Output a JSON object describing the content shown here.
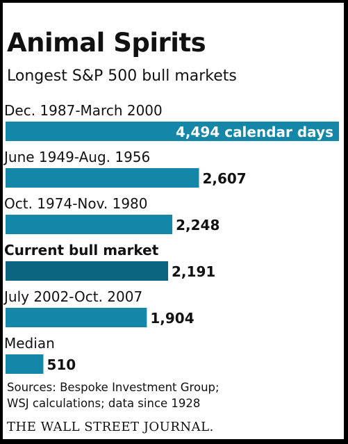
{
  "chart_data": {
    "type": "bar",
    "orientation": "horizontal",
    "title": "Animal Spirits",
    "subtitle": "Longest S&P 500 bull markets",
    "categories": [
      "Dec. 1987-March 2000",
      "June 1949-Aug. 1956",
      "Oct. 1974-Nov. 1980",
      "Current bull market",
      "July 2002-Oct. 2007",
      "Median"
    ],
    "values": [
      4494,
      2607,
      2248,
      2191,
      1904,
      510
    ],
    "value_labels": [
      "4,494 calendar days",
      "2,607",
      "2,248",
      "2,191",
      "1,904",
      "510"
    ],
    "highlight_index": 3,
    "xlabel": "",
    "ylabel": "",
    "grid": false,
    "legend": "none"
  },
  "colors": {
    "bar": "#1486a8",
    "bar_highlight": "#0b6480"
  },
  "sources": [
    "Sources: Bespoke Investment Group;",
    "WSJ calculations; data since 1928"
  ],
  "credit": "THE WALL STREET JOURNAL."
}
